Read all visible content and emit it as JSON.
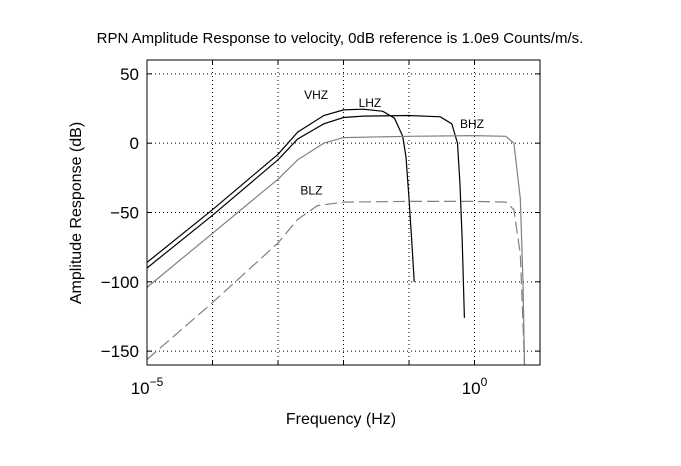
{
  "chart_data": {
    "type": "line",
    "title": "RPN Amplitude Response to velocity, 0dB reference is 1.0e9 Counts/m/s.",
    "xlabel": "Frequency (Hz)",
    "ylabel": "Amplitude Response (dB)",
    "x_scale": "log",
    "xlim": [
      1e-05,
      10
    ],
    "ylim": [
      -160,
      60
    ],
    "grid": true,
    "x_ticks": [
      {
        "value": 1e-05,
        "base": "10",
        "exp": "−5"
      },
      {
        "value": 1,
        "base": "10",
        "exp": "0"
      }
    ],
    "x_grid": [
      0.0001,
      0.001,
      0.01,
      0.1,
      1
    ],
    "y_ticks": [
      {
        "value": 50,
        "label": "50"
      },
      {
        "value": 0,
        "label": "0"
      },
      {
        "value": -50,
        "label": "−50"
      },
      {
        "value": -100,
        "label": "−100"
      },
      {
        "value": -150,
        "label": "−150"
      }
    ],
    "series": [
      {
        "name": "VHZ",
        "color": "#000000",
        "dash": "",
        "label_point": [
          0.0025,
          32
        ],
        "points": [
          [
            1e-05,
            -86
          ],
          [
            0.0001,
            -48
          ],
          [
            0.001,
            -8
          ],
          [
            0.002,
            8
          ],
          [
            0.005,
            20
          ],
          [
            0.01,
            24
          ],
          [
            0.02,
            24.5
          ],
          [
            0.04,
            23
          ],
          [
            0.06,
            18
          ],
          [
            0.08,
            5
          ],
          [
            0.09,
            -10
          ],
          [
            0.1,
            -40
          ],
          [
            0.11,
            -70
          ],
          [
            0.12,
            -100
          ]
        ]
      },
      {
        "name": "LHZ",
        "color": "#000000",
        "dash": "",
        "label_point": [
          0.017,
          26
        ],
        "points": [
          [
            1e-05,
            -90
          ],
          [
            0.0001,
            -52
          ],
          [
            0.001,
            -12
          ],
          [
            0.002,
            3
          ],
          [
            0.005,
            14
          ],
          [
            0.01,
            18.5
          ],
          [
            0.02,
            19.5
          ],
          [
            0.1,
            20
          ],
          [
            0.3,
            19
          ],
          [
            0.45,
            14
          ],
          [
            0.55,
            0
          ],
          [
            0.6,
            -30
          ],
          [
            0.65,
            -70
          ],
          [
            0.7,
            -126
          ]
        ]
      },
      {
        "name": "BHZ",
        "color": "#808080",
        "dash": "",
        "label_point": [
          0.6,
          11
        ],
        "points": [
          [
            1e-05,
            -104
          ],
          [
            0.0001,
            -65
          ],
          [
            0.001,
            -26
          ],
          [
            0.002,
            -12
          ],
          [
            0.005,
            0
          ],
          [
            0.01,
            4
          ],
          [
            0.1,
            5
          ],
          [
            1,
            5.5
          ],
          [
            3,
            5
          ],
          [
            4,
            0
          ],
          [
            5,
            -40
          ],
          [
            5.5,
            -100
          ],
          [
            5.8,
            -160
          ]
        ]
      },
      {
        "name": "BLZ",
        "color": "#808080",
        "dash": "12 5",
        "label_point": [
          0.0022,
          -37
        ],
        "points": [
          [
            1e-05,
            -156
          ],
          [
            0.0001,
            -115
          ],
          [
            0.001,
            -72
          ],
          [
            0.002,
            -55
          ],
          [
            0.004,
            -45
          ],
          [
            0.01,
            -42.5
          ],
          [
            0.1,
            -42
          ],
          [
            1,
            -42
          ],
          [
            3,
            -42.5
          ],
          [
            4,
            -48
          ],
          [
            5,
            -80
          ],
          [
            5.5,
            -130
          ],
          [
            5.8,
            -160
          ]
        ]
      }
    ]
  }
}
